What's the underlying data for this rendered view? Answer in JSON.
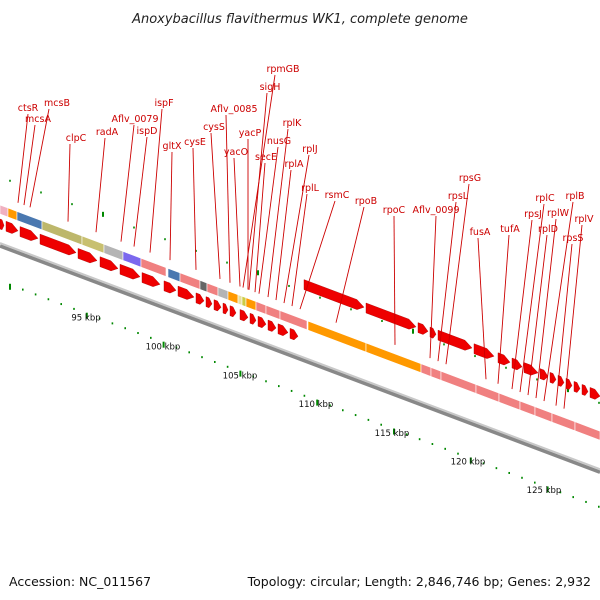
{
  "title": "Anoxybacillus flavithermus WK1, complete genome",
  "footer": {
    "accession": "Accession: NC_011567",
    "topology": "Topology: circular; Length: 2,846,746 bp; Genes: 2,932"
  },
  "colors": {
    "label": "#cc0000",
    "arrow": "#ee0000",
    "tick": "#008800",
    "backbone": "#888888"
  },
  "kbp_labels": [
    "95 kbp",
    "100 kbp",
    "105 kbp",
    "110 kbp",
    "115 kbp",
    "120 kbp",
    "125 kbp"
  ],
  "genes": [
    {
      "name": "ctsR"
    },
    {
      "name": "mcsA"
    },
    {
      "name": "mcsB"
    },
    {
      "name": "clpC"
    },
    {
      "name": "radA"
    },
    {
      "name": "Aflv_0079"
    },
    {
      "name": "ispD"
    },
    {
      "name": "ispF"
    },
    {
      "name": "gltX"
    },
    {
      "name": "cysE"
    },
    {
      "name": "cysS"
    },
    {
      "name": "Aflv_0085"
    },
    {
      "name": "yacO"
    },
    {
      "name": "yacP"
    },
    {
      "name": "rpmGB"
    },
    {
      "name": "sigH"
    },
    {
      "name": "secE"
    },
    {
      "name": "nusG"
    },
    {
      "name": "rplK"
    },
    {
      "name": "rplA"
    },
    {
      "name": "rplJ"
    },
    {
      "name": "rplL"
    },
    {
      "name": "rsmC"
    },
    {
      "name": "rpoB"
    },
    {
      "name": "rpoC"
    },
    {
      "name": "Aflv_0099"
    },
    {
      "name": "rpsL"
    },
    {
      "name": "rpsG"
    },
    {
      "name": "fusA"
    },
    {
      "name": "tufA"
    },
    {
      "name": "rpsJ"
    },
    {
      "name": "rplC"
    },
    {
      "name": "rplD"
    },
    {
      "name": "rplW"
    },
    {
      "name": "rplB"
    },
    {
      "name": "rpsS"
    },
    {
      "name": "rplV"
    }
  ]
}
